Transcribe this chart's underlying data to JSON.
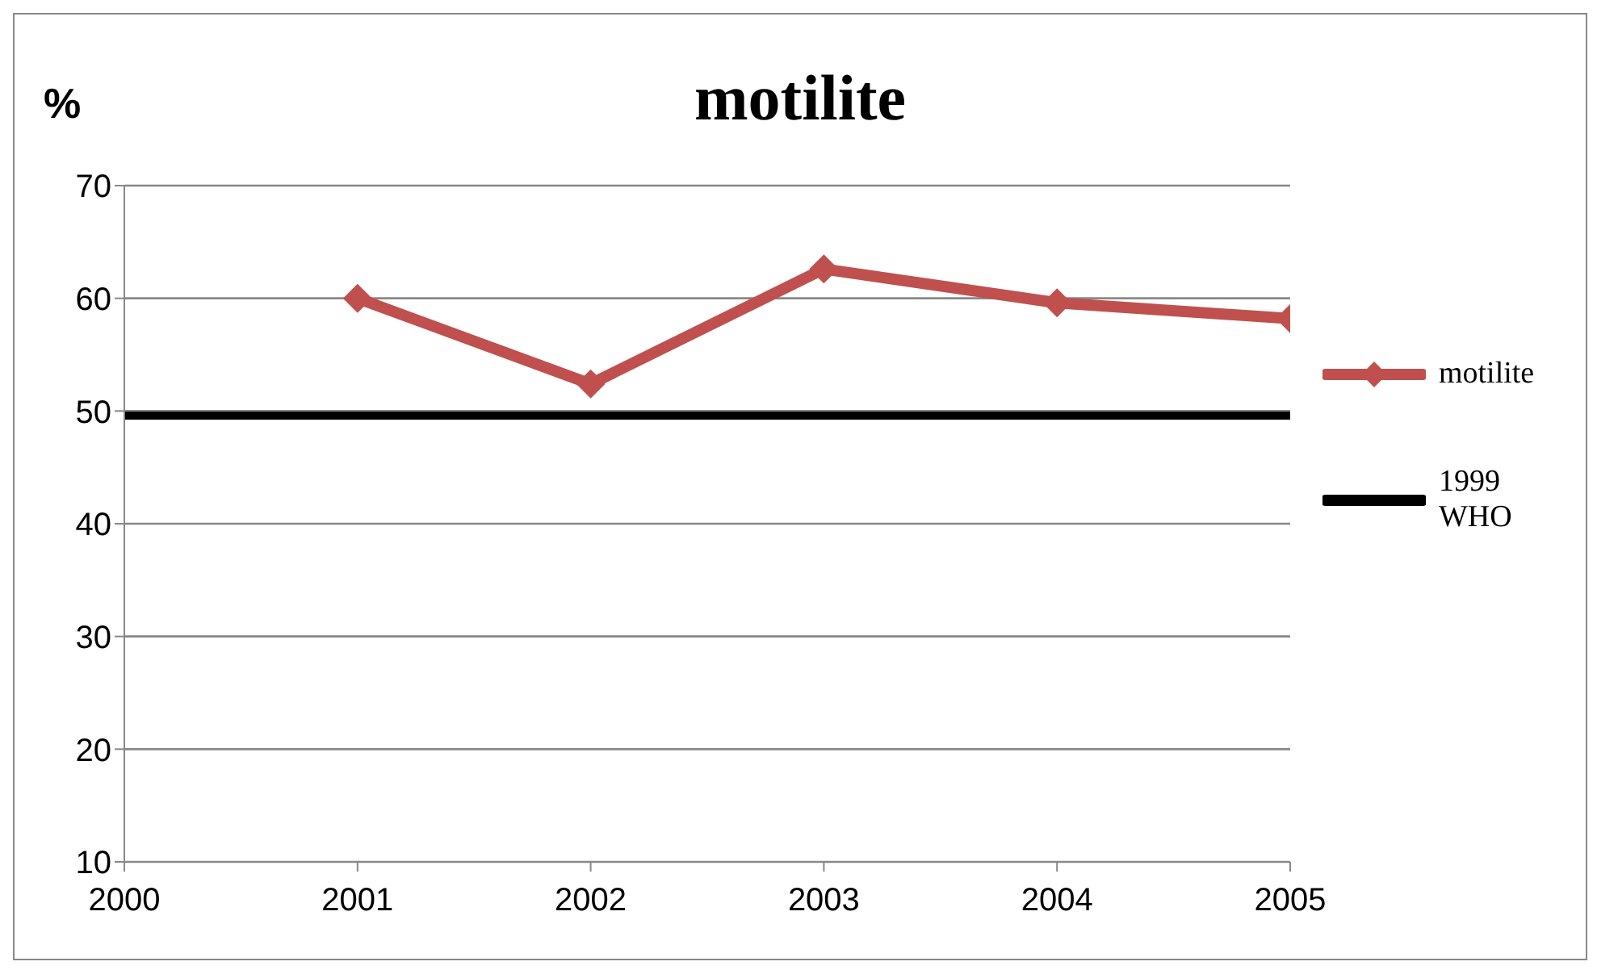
{
  "chart_data": {
    "type": "line",
    "title": "motilite",
    "ylabel": "%",
    "xlim": [
      2000,
      2005
    ],
    "xticks": [
      2000,
      2001,
      2002,
      2003,
      2004,
      2005
    ],
    "ylim": [
      10,
      70
    ],
    "yticks": [
      10,
      20,
      30,
      40,
      50,
      60,
      70
    ],
    "grid": "y",
    "legend": "right",
    "series": [
      {
        "name": "motilite",
        "color": "#c0504d",
        "marker": "diamond",
        "x": [
          2001,
          2002,
          2003,
          2004,
          2005
        ],
        "values": [
          60,
          52.4,
          62.6,
          59.6,
          58.2
        ]
      },
      {
        "name": "1999 WHO",
        "color": "#000000",
        "marker": "none",
        "x": [
          2000,
          2005
        ],
        "values": [
          49.6,
          49.6
        ]
      }
    ]
  }
}
